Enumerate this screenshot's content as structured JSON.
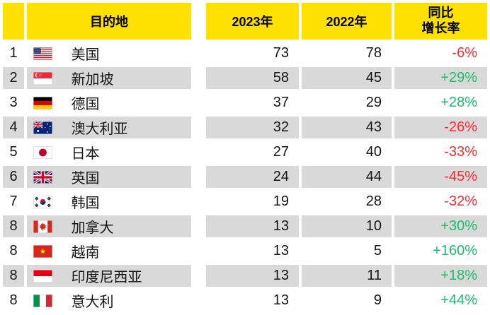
{
  "colors": {
    "header_bg": "#FFE100",
    "row_alt_bg": "#D9D9D9",
    "positive": "#1CBE6E",
    "negative": "#FB2C33",
    "text": "#161616"
  },
  "chart_data": {
    "type": "table",
    "columns": {
      "rank": "",
      "destination": "目的地",
      "y2023": "2023年",
      "y2022": "2022年",
      "growth": "同比\n增长率"
    },
    "rows": [
      {
        "rank": "1",
        "flag": "us",
        "destination": "美国",
        "y2023": 73,
        "y2022": 78,
        "growth": "-6%"
      },
      {
        "rank": "2",
        "flag": "sg",
        "destination": "新加坡",
        "y2023": 58,
        "y2022": 45,
        "growth": "+29%"
      },
      {
        "rank": "3",
        "flag": "de",
        "destination": "德国",
        "y2023": 37,
        "y2022": 29,
        "growth": "+28%"
      },
      {
        "rank": "4",
        "flag": "au",
        "destination": "澳大利亚",
        "y2023": 32,
        "y2022": 43,
        "growth": "-26%"
      },
      {
        "rank": "5",
        "flag": "jp",
        "destination": "日本",
        "y2023": 27,
        "y2022": 40,
        "growth": "-33%"
      },
      {
        "rank": "6",
        "flag": "gb",
        "destination": "英国",
        "y2023": 24,
        "y2022": 44,
        "growth": "-45%"
      },
      {
        "rank": "7",
        "flag": "kr",
        "destination": "韩国",
        "y2023": 19,
        "y2022": 28,
        "growth": "-32%"
      },
      {
        "rank": "8",
        "flag": "ca",
        "destination": "加拿大",
        "y2023": 13,
        "y2022": 10,
        "growth": "+30%"
      },
      {
        "rank": "8",
        "flag": "vn",
        "destination": "越南",
        "y2023": 13,
        "y2022": 5,
        "growth": "+160%"
      },
      {
        "rank": "8",
        "flag": "id",
        "destination": "印度尼西亚",
        "y2023": 13,
        "y2022": 11,
        "growth": "+18%"
      },
      {
        "rank": "8",
        "flag": "it",
        "destination": "意大利",
        "y2023": 13,
        "y2022": 9,
        "growth": "+44%"
      }
    ]
  }
}
